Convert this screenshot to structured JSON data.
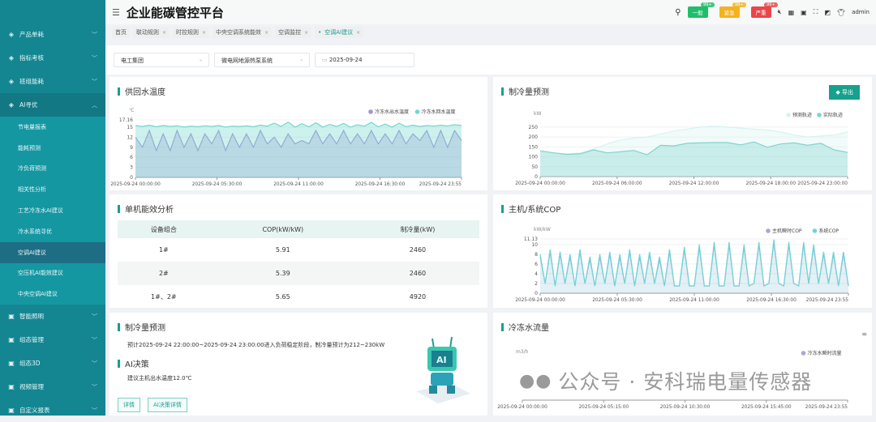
{
  "app": {
    "title": "企业能碳管控平台",
    "user": "admin"
  },
  "alerts": [
    {
      "label": "一般",
      "count": "99+",
      "color": "#1fbf6a"
    },
    {
      "label": "紧急",
      "count": "99+",
      "color": "#f5b21e"
    },
    {
      "label": "严重",
      "count": "99+",
      "color": "#e8464a"
    }
  ],
  "sidebar": {
    "items": [
      {
        "label": "产品单耗",
        "icon": "trend-icon"
      },
      {
        "label": "指标考核",
        "icon": "gauge-icon"
      },
      {
        "label": "班组能耗",
        "icon": "grid-icon"
      },
      {
        "label": "AI寻优",
        "icon": "robot-icon",
        "open": true
      }
    ],
    "sub_items": [
      "节电量报表",
      "能耗预测",
      "冷负荷预测",
      "相关性分析",
      "工艺冷冻水AI建议",
      "冷水系统寻优",
      "空调AI建议",
      "空压机AI能效建议",
      "中央空调AI建议"
    ],
    "active_sub": "空调AI建议",
    "bottom_items": [
      {
        "label": "智能照明",
        "icon": "pin-icon"
      },
      {
        "label": "组态管理",
        "icon": "image-icon"
      },
      {
        "label": "组态3D",
        "icon": "image-icon"
      },
      {
        "label": "视频管理",
        "icon": "camera-icon"
      },
      {
        "label": "自定义报表",
        "icon": "report-icon"
      }
    ]
  },
  "tabs": [
    {
      "label": "首页"
    },
    {
      "label": "联动规则"
    },
    {
      "label": "时控规则"
    },
    {
      "label": "中央空调系统能效"
    },
    {
      "label": "空调监控"
    },
    {
      "label": "空调AI建议",
      "active": true
    }
  ],
  "filters": {
    "company": "电工集团",
    "system": "微电网地源热泵系统",
    "date": "2025-09-24"
  },
  "panels": {
    "temp": {
      "title": "供回水温度"
    },
    "forecast": {
      "title": "制冷量预测",
      "export": "导出"
    },
    "unit": {
      "title": "单机能效分析",
      "headers": [
        "设备组合",
        "COP(kW/kW)",
        "制冷量(kW)"
      ],
      "rows": [
        [
          "1#",
          "5.91",
          "2460"
        ],
        [
          "2#",
          "5.39",
          "2460"
        ],
        [
          "1#、2#",
          "5.65",
          "4920"
        ]
      ]
    },
    "cop": {
      "title": "主机/系统COP"
    },
    "advice": {
      "title": "制冷量预测",
      "text": "预计2025-09-24 22:00:00~2025-09-24 23:00:00进入负荷稳定阶段，制冷量预计为212~230kW",
      "ai_title": "AI决策",
      "ai_text": "建议主机出水温度12.0℃",
      "btn_detail": "详情",
      "btn_ai": "AI决策详情"
    },
    "flow": {
      "title": "冷冻水流量"
    }
  },
  "watermark": "公众号 · 安科瑞电量传感器",
  "chart_data": [
    {
      "id": "temp",
      "type": "area",
      "ylabel": "℃",
      "ylim": [
        0,
        17.16
      ],
      "yticks": [
        "0",
        "3",
        "6",
        "9",
        "12",
        "15",
        "17.16"
      ],
      "xticks": [
        "2025-09-24 00:00:00",
        "2025-09-24 05:30:00",
        "2025-09-24 11:00:00",
        "2025-09-24 16:30:00",
        "2025-09-24 23:55"
      ],
      "legend": "top-right",
      "series": [
        {
          "name": "冷冻水出水温度",
          "color": "#a893d6",
          "values": [
            12,
            9,
            14,
            8,
            13,
            8,
            14,
            9,
            13,
            8,
            13,
            10,
            14,
            8,
            13,
            9,
            13,
            9,
            14,
            10,
            12,
            9,
            13,
            10,
            11,
            10,
            14,
            10,
            13,
            10,
            14,
            10,
            13,
            10,
            14,
            10,
            13,
            10,
            14,
            10,
            13,
            11,
            14,
            9,
            14,
            9,
            14,
            11
          ]
        },
        {
          "name": "冷冻水回水温度",
          "color": "#6fd9cf",
          "values": [
            15.5,
            15.2,
            15.6,
            15.1,
            15.5,
            15.2,
            15.4,
            15,
            15.3,
            15.1,
            15.4,
            15.2,
            15.5,
            15,
            15.3,
            15.2,
            15.4,
            15.1,
            15.6,
            15.3,
            16.2,
            15.2,
            16.5,
            15,
            16,
            15.1,
            16.3,
            15,
            15.8,
            15.2,
            16.1,
            15,
            15.7,
            15.3,
            16.4,
            15.1,
            15.9,
            15,
            16.2,
            15.1,
            15.6,
            15.2,
            15.5,
            15.3,
            15.6,
            15.4,
            15.7,
            15.5
          ]
        }
      ]
    },
    {
      "id": "forecast",
      "type": "area",
      "ylabel": "kW",
      "ylim": [
        0,
        270
      ],
      "yticks": [
        "0",
        "50",
        "100",
        "150",
        "200",
        "250"
      ],
      "ytickvals": [
        0,
        50,
        100,
        150,
        200,
        250
      ],
      "xticks": [
        "2025-09-24 00:00:00",
        "2025-09-24 06:00:00",
        "2025-09-24 12:00:00",
        "2025-09-24 18:00:00",
        "2025-09-24 23:00:00"
      ],
      "legend": "top-right",
      "series": [
        {
          "name": "预测轨迹",
          "color": "#d6f3f0",
          "values": [
            130,
            120,
            115,
            120,
            140,
            165,
            185,
            195,
            200,
            215,
            230,
            240,
            250,
            255,
            250,
            245,
            240,
            235,
            225,
            210,
            200,
            205,
            210,
            225
          ]
        },
        {
          "name": "实际轨迹",
          "color": "#7fd4cb",
          "values": [
            130,
            120,
            112,
            115,
            135,
            120,
            125,
            132,
            110,
            158,
            155,
            168,
            170,
            172,
            172,
            160,
            175,
            148,
            165,
            170,
            158,
            168,
            135,
            122
          ]
        }
      ]
    },
    {
      "id": "cop",
      "type": "line",
      "ylabel": "kW/kW",
      "ylim": [
        0,
        11.13
      ],
      "yticks": [
        "0",
        "2",
        "4",
        "6",
        "8",
        "10",
        "11.13"
      ],
      "ytickvals": [
        0,
        2,
        4,
        6,
        8,
        10,
        11.13
      ],
      "xticks": [
        "2025-09-24 00:00:00",
        "2025-09-24 05:30:00",
        "2025-09-24 11:00:00",
        "2025-09-24 16:30:00",
        "2025-09-24 23:55"
      ],
      "legend": "top-right",
      "series": [
        {
          "name": "主机瞬时COP",
          "color": "#a7a8d8",
          "values": [
            7.5,
            2,
            8.5,
            1.5,
            8,
            2,
            7.5,
            1.5,
            8.5,
            2,
            7,
            1.5,
            7.5,
            2,
            8,
            1.5,
            7.5,
            2,
            8.5,
            1.5,
            7.5,
            2,
            8,
            2,
            7,
            1.5,
            8.5,
            1.5,
            1.5,
            9,
            1.5,
            1.5,
            9.5,
            1.5,
            1.5,
            10,
            1.5,
            1.5,
            10,
            1.5,
            1.5,
            9.5,
            1.5,
            2,
            10,
            1.5,
            2,
            10.5,
            2,
            1.5,
            10,
            2,
            1.5,
            10,
            2,
            9.5,
            2,
            8,
            2,
            8,
            1.5,
            8,
            1.5
          ]
        },
        {
          "name": "系统COP",
          "color": "#6fd6d6",
          "values": [
            8,
            2,
            9,
            1.5,
            8.5,
            2,
            8,
            1.5,
            9,
            2,
            7.5,
            1.5,
            8,
            2,
            8.5,
            1.5,
            8,
            2,
            9,
            1.5,
            8,
            2,
            8.5,
            2,
            7.5,
            1.5,
            9,
            1.5,
            1.5,
            9.5,
            1.5,
            1.5,
            10,
            1.5,
            1.5,
            10.5,
            1.5,
            1.5,
            10.5,
            1.5,
            1.5,
            10,
            1.5,
            2,
            10.5,
            1.5,
            2,
            11,
            2,
            1.5,
            10.5,
            2,
            1.5,
            10.5,
            2,
            10,
            2,
            8.5,
            2,
            8.5,
            1.5,
            8.5,
            1.5
          ]
        }
      ]
    },
    {
      "id": "flow",
      "type": "line",
      "ylabel": "m3/h",
      "xticks": [
        "2025-09-24 00:00:00",
        "2025-09-24 05:15:00",
        "2025-09-24 10:30:00",
        "2025-09-24 15:45:00",
        "2025-09-24 23:55"
      ],
      "legend": "top-right",
      "series": [
        {
          "name": "冷冻水瞬时流量",
          "color": "#a7a8d8",
          "values": []
        }
      ]
    }
  ]
}
